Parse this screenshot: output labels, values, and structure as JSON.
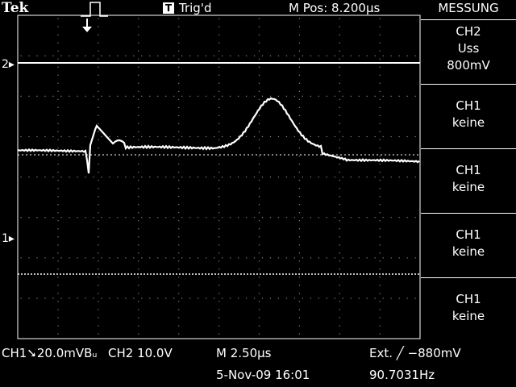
{
  "header": {
    "brand": "Tek",
    "trigger_state_badge": "T",
    "trigger_state": "Trig'd",
    "m_pos": "M Pos: 8.200µs",
    "menu_title": "MESSUNG"
  },
  "markers": {
    "ch2": "2▸",
    "ch1": "1▸"
  },
  "measure_menu": [
    {
      "source": "CH2",
      "type": "Uss",
      "value": "800mV"
    },
    {
      "source": "CH1",
      "type": "keine",
      "value": ""
    },
    {
      "source": "CH1",
      "type": "keine",
      "value": ""
    },
    {
      "source": "CH1",
      "type": "keine",
      "value": ""
    },
    {
      "source": "CH1",
      "type": "keine",
      "value": ""
    }
  ],
  "footer": {
    "ch1_scale": "CH1➘20.0mVBᵤ",
    "ch2_scale": "CH2  10.0V",
    "timebase": "M 2.50µs",
    "trigger": "Ext. ╱ −880mV",
    "date": "5-Nov-09 16:01",
    "frequency": "90.7031Hz"
  },
  "colors": {
    "background": "#000000",
    "trace": "#ffffff",
    "graticule": "#ffffff"
  }
}
